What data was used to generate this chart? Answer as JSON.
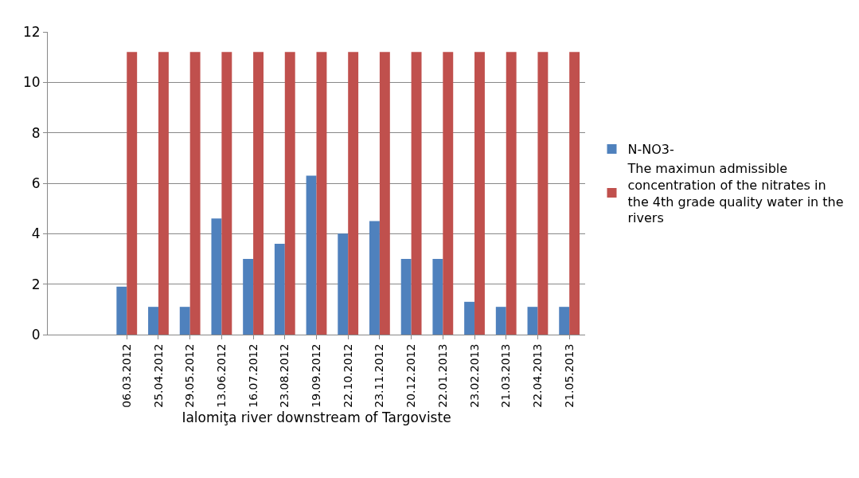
{
  "chart_data": {
    "type": "bar",
    "xlabel": "Ialomiţa river downstream of Targoviste",
    "categories": [
      null,
      null,
      "06.03.2012",
      "25.04.2012",
      "29.05.2012",
      "13.06.2012",
      "16.07.2012",
      "23.08.2012",
      "19.09.2012",
      "22.10.2012",
      "23.11.2012",
      "20.12.2012",
      "22.01.2013",
      "23.02.2013",
      "21.03.2013",
      "22.04.2013",
      "21.05.2013"
    ],
    "series": [
      {
        "name": "N-NO3-",
        "color": "#4f81bd",
        "values": [
          0,
          0,
          1.9,
          1.1,
          1.1,
          4.6,
          3.0,
          3.6,
          6.3,
          4.0,
          4.5,
          3.0,
          3.0,
          1.3,
          1.1,
          1.1,
          1.1
        ]
      },
      {
        "name": "The maximun admissible concentration of the nitrates in the 4th grade quality water in the rivers",
        "color": "#c0504d",
        "values": [
          null,
          null,
          11.2,
          11.2,
          11.2,
          11.2,
          11.2,
          11.2,
          11.2,
          11.2,
          11.2,
          11.2,
          11.2,
          11.2,
          11.2,
          11.2,
          11.2
        ]
      }
    ],
    "ylim": [
      0,
      12
    ],
    "yticks": [
      0,
      2,
      4,
      6,
      8,
      10,
      12
    ],
    "grid": "y",
    "legend": "right"
  }
}
